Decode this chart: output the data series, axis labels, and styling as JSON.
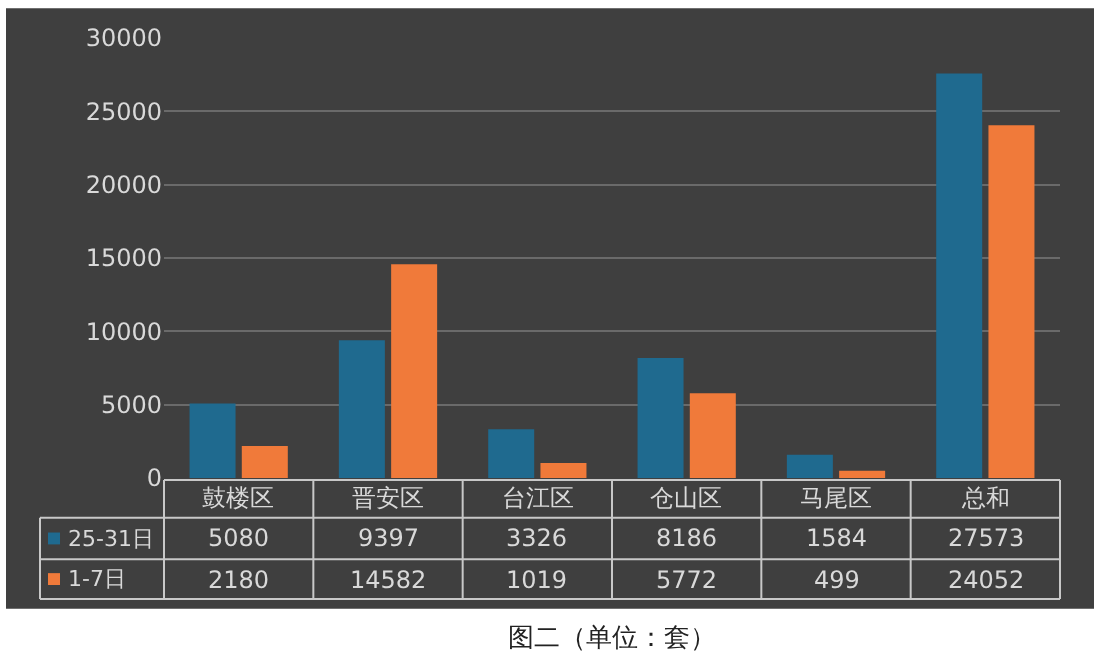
{
  "chart_data": {
    "type": "bar",
    "title": "图二（单位：套）",
    "categories": [
      "鼓楼区",
      "晋安区",
      "台江区",
      "仓山区",
      "马尾区",
      "总和"
    ],
    "series": [
      {
        "name": "25-31日",
        "color": "#1f6a8f",
        "values": [
          5080,
          9397,
          3326,
          8186,
          1584,
          27573
        ]
      },
      {
        "name": "1-7日",
        "color": "#f07a3a",
        "values": [
          2180,
          14582,
          1019,
          5772,
          499,
          24052
        ]
      }
    ],
    "ylim": [
      0,
      30000
    ],
    "yticks": [
      0,
      5000,
      10000,
      15000,
      20000,
      25000,
      30000
    ],
    "grid": "y",
    "data_labels": true,
    "legend": "bottom left"
  }
}
